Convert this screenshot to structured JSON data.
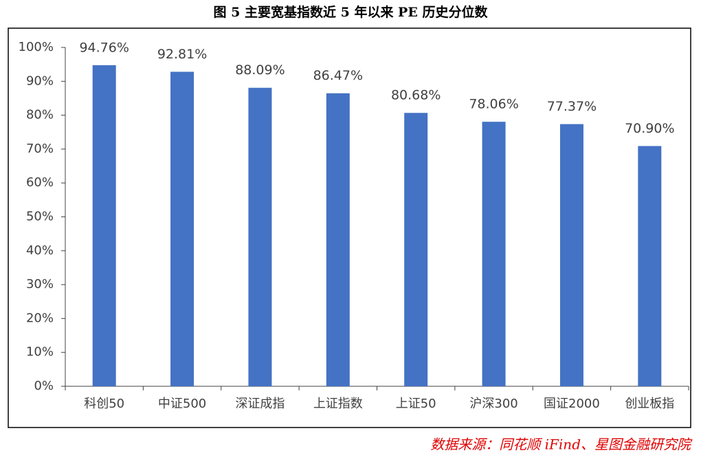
{
  "chart_data": {
    "type": "bar",
    "title": "图 5 主要宽基指数近 5 年以来 PE 历史分位数",
    "categories": [
      "科创50",
      "中证500",
      "深证成指",
      "上证指数",
      "上证50",
      "沪深300",
      "国证2000",
      "创业板指"
    ],
    "values": [
      94.76,
      92.81,
      88.09,
      86.47,
      80.68,
      78.06,
      77.37,
      70.9
    ],
    "value_labels": [
      "94.76%",
      "92.81%",
      "88.09%",
      "86.47%",
      "80.68%",
      "78.06%",
      "77.37%",
      "70.90%"
    ],
    "color": "#4472c4",
    "ylim": [
      0,
      100
    ],
    "yticks": [
      {
        "value": 0,
        "label": "0%"
      },
      {
        "value": 10,
        "label": "10%"
      },
      {
        "value": 20,
        "label": "20%"
      },
      {
        "value": 30,
        "label": "30%"
      },
      {
        "value": 40,
        "label": "40%"
      },
      {
        "value": 50,
        "label": "50%"
      },
      {
        "value": 60,
        "label": "60%"
      },
      {
        "value": 70,
        "label": "70%"
      },
      {
        "value": 80,
        "label": "80%"
      },
      {
        "value": 90,
        "label": "90%"
      },
      {
        "value": 100,
        "label": "100%"
      }
    ],
    "grid": false,
    "source": "数据来源：同花顺 iFind、星图金融研究院"
  }
}
